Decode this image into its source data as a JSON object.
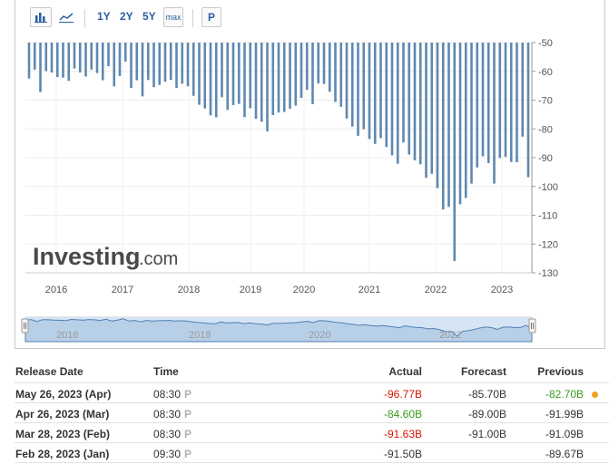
{
  "toolbar": {
    "ranges": [
      "1Y",
      "2Y",
      "5Y"
    ],
    "max_label": "max",
    "p_label": "P"
  },
  "logo": {
    "brand": "Investing",
    "suffix": ".com"
  },
  "colors": {
    "bar": "#5f88b0",
    "negative": "#d91400",
    "positive": "#3a9b1f",
    "dot": "#f0a11d"
  },
  "chart_data": {
    "type": "bar",
    "title": "",
    "ylim": [
      -130,
      -50
    ],
    "yticks": [
      -50,
      -60,
      -70,
      -80,
      -90,
      -100,
      -110,
      -120,
      -130
    ],
    "ytick_labels": [
      "-50",
      "-60",
      "-70",
      "-80",
      "-90",
      "-100",
      "-110",
      "-120",
      "-130"
    ],
    "xtick_labels": [
      "2016",
      "2017",
      "2018",
      "2019",
      "2020",
      "2021",
      "2022",
      "2023"
    ],
    "grid": true,
    "series": [
      {
        "values": [
          -62.5,
          -59.4,
          -67.2,
          -59.9,
          -60.4,
          -62.0,
          -62.2,
          -63.3,
          -59.0,
          -60.4,
          -61.8,
          -59.4,
          -60.6,
          -63.1,
          -58.2,
          -65.2,
          -61.6,
          -56.6,
          -65.8,
          -63.1,
          -68.7,
          -63.0,
          -65.5,
          -64.7,
          -63.6,
          -63.0,
          -65.8,
          -64.3,
          -65.2,
          -68.5,
          -71.6,
          -72.9,
          -75.3,
          -76.0,
          -69.0,
          -73.4,
          -71.7,
          -71.3,
          -75.9,
          -72.8,
          -76.5,
          -77.5,
          -80.9,
          -75.2,
          -74.3,
          -74.1,
          -73.0,
          -71.9,
          -69.2,
          -66.4,
          -71.4,
          -64.2,
          -64.4,
          -67.1,
          -70.6,
          -72.3,
          -76.4,
          -79.2,
          -82.4,
          -80.1,
          -83.5,
          -85.2,
          -83.2,
          -86.3,
          -89.2,
          -92.1,
          -84.7,
          -88.9,
          -90.9,
          -92.3,
          -97.0,
          -95.6,
          -100.6,
          -108.0,
          -107.1,
          -125.9,
          -106.2,
          -104.0,
          -99.0,
          -93.4,
          -89.5,
          -91.9,
          -99.0,
          -90.1,
          -89.7,
          -91.5,
          -91.6,
          -82.7,
          -96.8
        ]
      }
    ]
  },
  "navigator": {
    "labels": [
      "2016",
      "2018",
      "2020",
      "2022"
    ]
  },
  "history": {
    "headers": {
      "date": "Release Date",
      "time": "Time",
      "actual": "Actual",
      "forecast": "Forecast",
      "previous": "Previous"
    },
    "rows": [
      {
        "date": "May 26, 2023 (Apr)",
        "time": "08:30",
        "actual": "-96.77B",
        "actual_status": "neg",
        "forecast": "-85.70B",
        "previous": "-82.70B",
        "previous_status": "pos",
        "marker": true
      },
      {
        "date": "Apr 26, 2023 (Mar)",
        "time": "08:30",
        "actual": "-84.60B",
        "actual_status": "pos",
        "forecast": "-89.00B",
        "previous": "-91.99B",
        "previous_status": "none",
        "marker": false
      },
      {
        "date": "Mar 28, 2023 (Feb)",
        "time": "08:30",
        "actual": "-91.63B",
        "actual_status": "neg",
        "forecast": "-91.00B",
        "previous": "-91.09B",
        "previous_status": "none",
        "marker": false
      },
      {
        "date": "Feb 28, 2023 (Jan)",
        "time": "09:30",
        "actual": "-91.50B",
        "actual_status": "none",
        "forecast": "",
        "previous": "-89.67B",
        "previous_status": "none",
        "marker": false
      }
    ],
    "p_icon": "P"
  }
}
